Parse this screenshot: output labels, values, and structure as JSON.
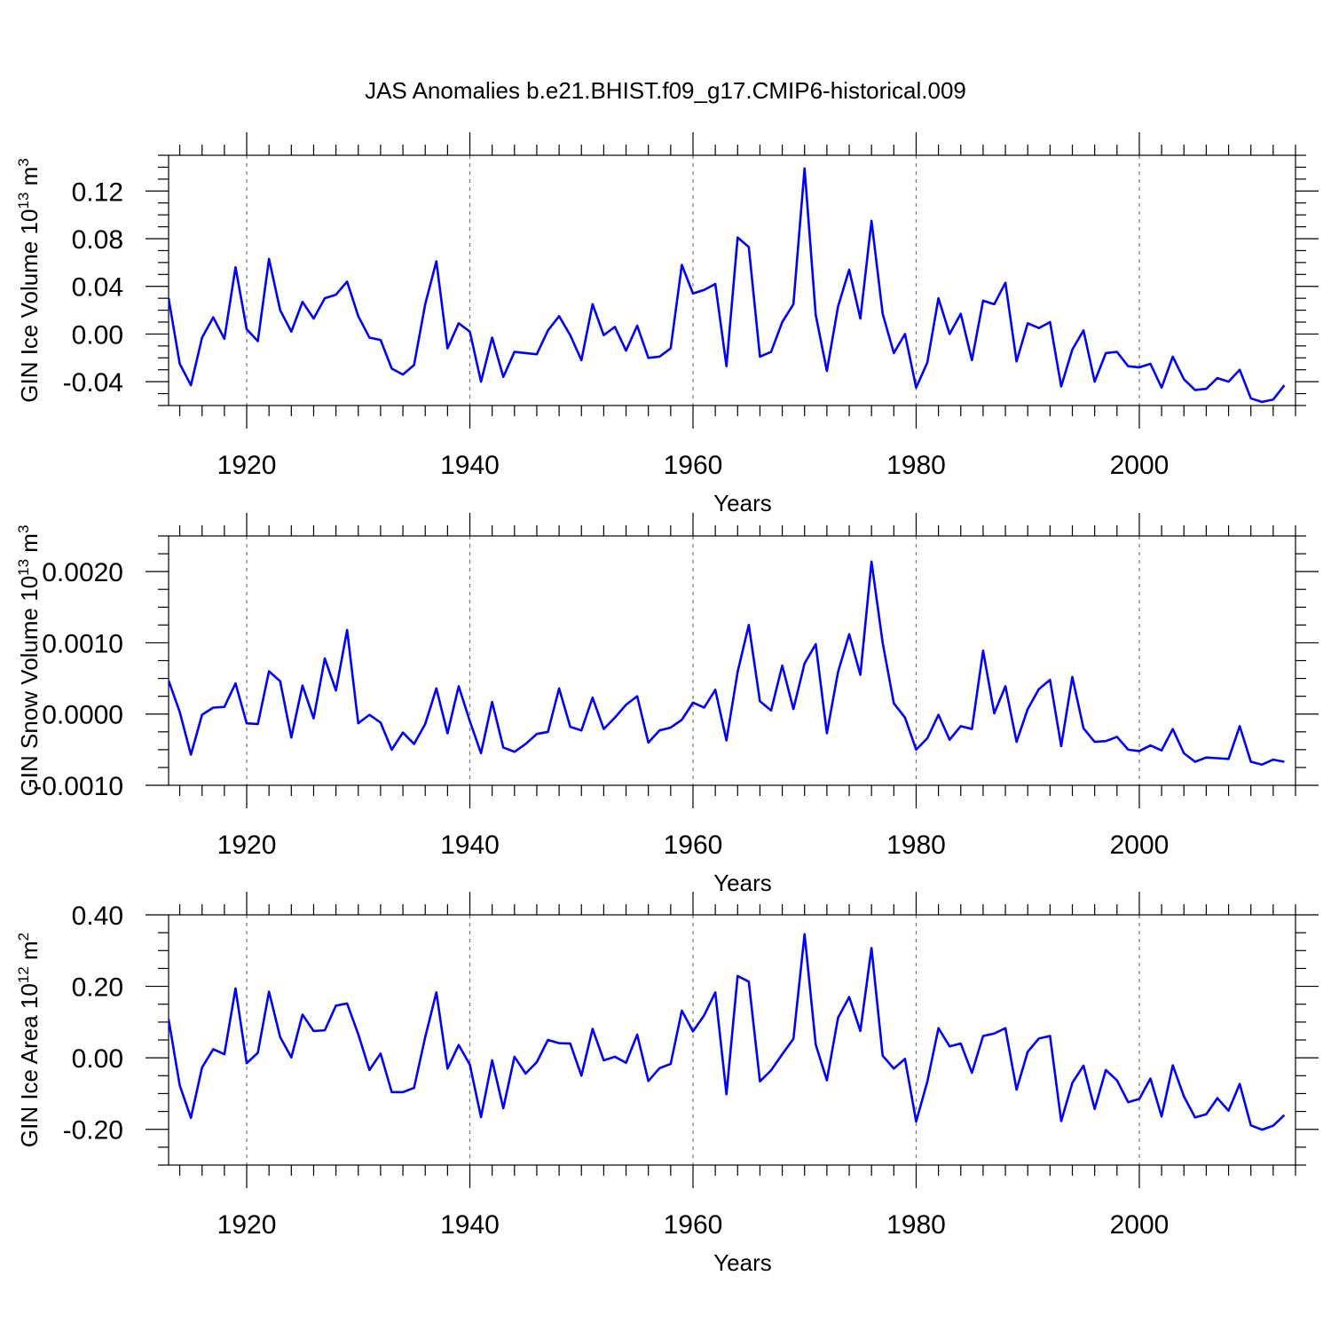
{
  "figure": {
    "title": "JAS Anomalies b.e21.BHIST.f09_g17.CMIP6-historical.009"
  },
  "chart_data": [
    {
      "type": "line",
      "ylabel": "GIN Ice Volume 10",
      "ylabel_sup": "13",
      "ylabel_unit": "m",
      "ylabel_unit_sup": "3",
      "xlabel": "Years",
      "xlim": [
        1913,
        2014
      ],
      "ylim": [
        -0.06,
        0.15
      ],
      "xticks": [
        1920,
        1940,
        1960,
        1980,
        2000
      ],
      "xtick_labels": [
        "1920",
        "1940",
        "1960",
        "1980",
        "2000"
      ],
      "yticks": [
        -0.04,
        0.0,
        0.04,
        0.08,
        0.12
      ],
      "ytick_labels": [
        "-0.04",
        "0.00",
        "0.04",
        "0.08",
        "0.12"
      ],
      "yminor_step": 0.01,
      "color": "#0000ff",
      "grid": "vertical dashed at major x ticks",
      "series": [
        {
          "x0": 1913,
          "values": [
            0.03,
            -0.025,
            -0.043,
            -0.003,
            0.014,
            -0.004,
            0.056,
            0.004,
            -0.006,
            0.063,
            0.02,
            0.002,
            0.027,
            0.013,
            0.03,
            0.033,
            0.044,
            0.015,
            -0.003,
            -0.005,
            -0.029,
            -0.034,
            -0.026,
            0.025,
            0.061,
            -0.012,
            0.009,
            0.002,
            -0.04,
            -0.003,
            -0.036,
            -0.015,
            -0.016,
            -0.017,
            0.003,
            0.015,
            -0.001,
            -0.022,
            0.025,
            -0.001,
            0.006,
            -0.014,
            0.007,
            -0.02,
            -0.019,
            -0.012,
            0.058,
            0.034,
            0.037,
            0.042,
            -0.027,
            0.081,
            0.073,
            -0.019,
            -0.015,
            0.01,
            0.025,
            0.139,
            0.016,
            -0.031,
            0.023,
            0.054,
            0.013,
            0.095,
            0.017,
            -0.016,
            0.0,
            -0.045,
            -0.024,
            0.03,
            0.0,
            0.017,
            -0.022,
            0.028,
            0.025,
            0.043,
            -0.023,
            0.009,
            0.005,
            0.01,
            -0.044,
            -0.013,
            0.003,
            -0.04,
            -0.016,
            -0.015,
            -0.027,
            -0.028,
            -0.025,
            -0.045,
            -0.019,
            -0.038,
            -0.047,
            -0.046,
            -0.037,
            -0.04,
            -0.03,
            -0.054,
            -0.057,
            -0.055,
            -0.043
          ]
        }
      ]
    },
    {
      "type": "line",
      "ylabel": "GIN Snow Volume 10",
      "ylabel_sup": "13",
      "ylabel_unit": "m",
      "ylabel_unit_sup": "3",
      "xlabel": "Years",
      "xlim": [
        1913,
        2014
      ],
      "ylim": [
        -0.001,
        0.0025
      ],
      "xticks": [
        1920,
        1940,
        1960,
        1980,
        2000
      ],
      "xtick_labels": [
        "1920",
        "1940",
        "1960",
        "1980",
        "2000"
      ],
      "yticks": [
        -0.001,
        0.0,
        0.001,
        0.002
      ],
      "ytick_labels": [
        "-0.0010",
        "0.0000",
        "0.0010",
        "0.0020"
      ],
      "yminor_step": 0.00025,
      "color": "#0000ff",
      "grid": "vertical dashed at major x ticks",
      "series": [
        {
          "x0": 1913,
          "values": [
            0.00047,
            3e-05,
            -0.00057,
            -1e-05,
            9e-05,
            0.0001,
            0.00043,
            -0.00013,
            -0.00014,
            0.0006,
            0.00046,
            -0.00033,
            0.0004,
            -6e-05,
            0.00078,
            0.00033,
            0.00118,
            -0.00013,
            -1e-05,
            -0.00012,
            -0.0005,
            -0.00026,
            -0.00042,
            -0.00014,
            0.00036,
            -0.00027,
            0.00039,
            -0.0001,
            -0.00055,
            0.00017,
            -0.00047,
            -0.00053,
            -0.00042,
            -0.00028,
            -0.00025,
            0.00036,
            -0.00018,
            -0.00023,
            0.00023,
            -0.00021,
            -5e-05,
            0.00013,
            0.00025,
            -0.0004,
            -0.00023,
            -0.00019,
            -8e-05,
            0.00016,
            9e-05,
            0.00034,
            -0.00037,
            0.00059,
            0.00125,
            0.00018,
            5e-05,
            0.00068,
            7e-05,
            0.00071,
            0.00098,
            -0.00027,
            0.00059,
            0.00112,
            0.00055,
            0.00214,
            0.001,
            0.00015,
            -5e-05,
            -0.0005,
            -0.00034,
            -1e-05,
            -0.00036,
            -0.00017,
            -0.00021,
            0.00089,
            1e-05,
            0.00039,
            -0.00039,
            7e-05,
            0.00035,
            0.00048,
            -0.00045,
            0.00052,
            -0.0002,
            -0.00039,
            -0.00038,
            -0.00032,
            -0.0005,
            -0.00052,
            -0.00044,
            -0.00051,
            -0.00021,
            -0.00055,
            -0.00067,
            -0.00061,
            -0.00062,
            -0.00063,
            -0.00017,
            -0.00067,
            -0.00071,
            -0.00064,
            -0.00067
          ]
        }
      ]
    },
    {
      "type": "line",
      "ylabel": "GIN Ice Area 10",
      "ylabel_sup": "12",
      "ylabel_unit": "m",
      "ylabel_unit_sup": "2",
      "xlabel": "Years",
      "xlim": [
        1913,
        2014
      ],
      "ylim": [
        -0.3,
        0.4
      ],
      "xticks": [
        1920,
        1940,
        1960,
        1980,
        2000
      ],
      "xtick_labels": [
        "1920",
        "1940",
        "1960",
        "1980",
        "2000"
      ],
      "yticks": [
        -0.2,
        0.0,
        0.2,
        0.4
      ],
      "ytick_labels": [
        "-0.20",
        "0.00",
        "0.20",
        "0.40"
      ],
      "yminor_step": 0.05,
      "color": "#0000ff",
      "grid": "vertical dashed at major x ticks",
      "series": [
        {
          "x0": 1913,
          "values": [
            0.108,
            -0.077,
            -0.168,
            -0.027,
            0.024,
            0.01,
            0.194,
            -0.015,
            0.014,
            0.185,
            0.058,
            0.001,
            0.121,
            0.075,
            0.077,
            0.146,
            0.152,
            0.066,
            -0.034,
            0.012,
            -0.096,
            -0.096,
            -0.084,
            0.058,
            0.183,
            -0.03,
            0.036,
            -0.019,
            -0.166,
            -0.007,
            -0.141,
            0.003,
            -0.044,
            -0.012,
            0.05,
            0.041,
            0.04,
            -0.05,
            0.081,
            -0.007,
            0.003,
            -0.014,
            0.065,
            -0.065,
            -0.029,
            -0.017,
            0.132,
            0.074,
            0.119,
            0.183,
            -0.102,
            0.229,
            0.213,
            -0.066,
            -0.035,
            0.01,
            0.053,
            0.346,
            0.037,
            -0.063,
            0.112,
            0.17,
            0.075,
            0.307,
            0.006,
            -0.03,
            -0.003,
            -0.178,
            -0.067,
            0.083,
            0.032,
            0.04,
            -0.042,
            0.061,
            0.068,
            0.083,
            -0.089,
            0.017,
            0.054,
            0.061,
            -0.177,
            -0.07,
            -0.022,
            -0.143,
            -0.034,
            -0.063,
            -0.124,
            -0.115,
            -0.058,
            -0.164,
            -0.021,
            -0.108,
            -0.167,
            -0.158,
            -0.113,
            -0.148,
            -0.073,
            -0.189,
            -0.201,
            -0.19,
            -0.16
          ]
        }
      ]
    }
  ]
}
